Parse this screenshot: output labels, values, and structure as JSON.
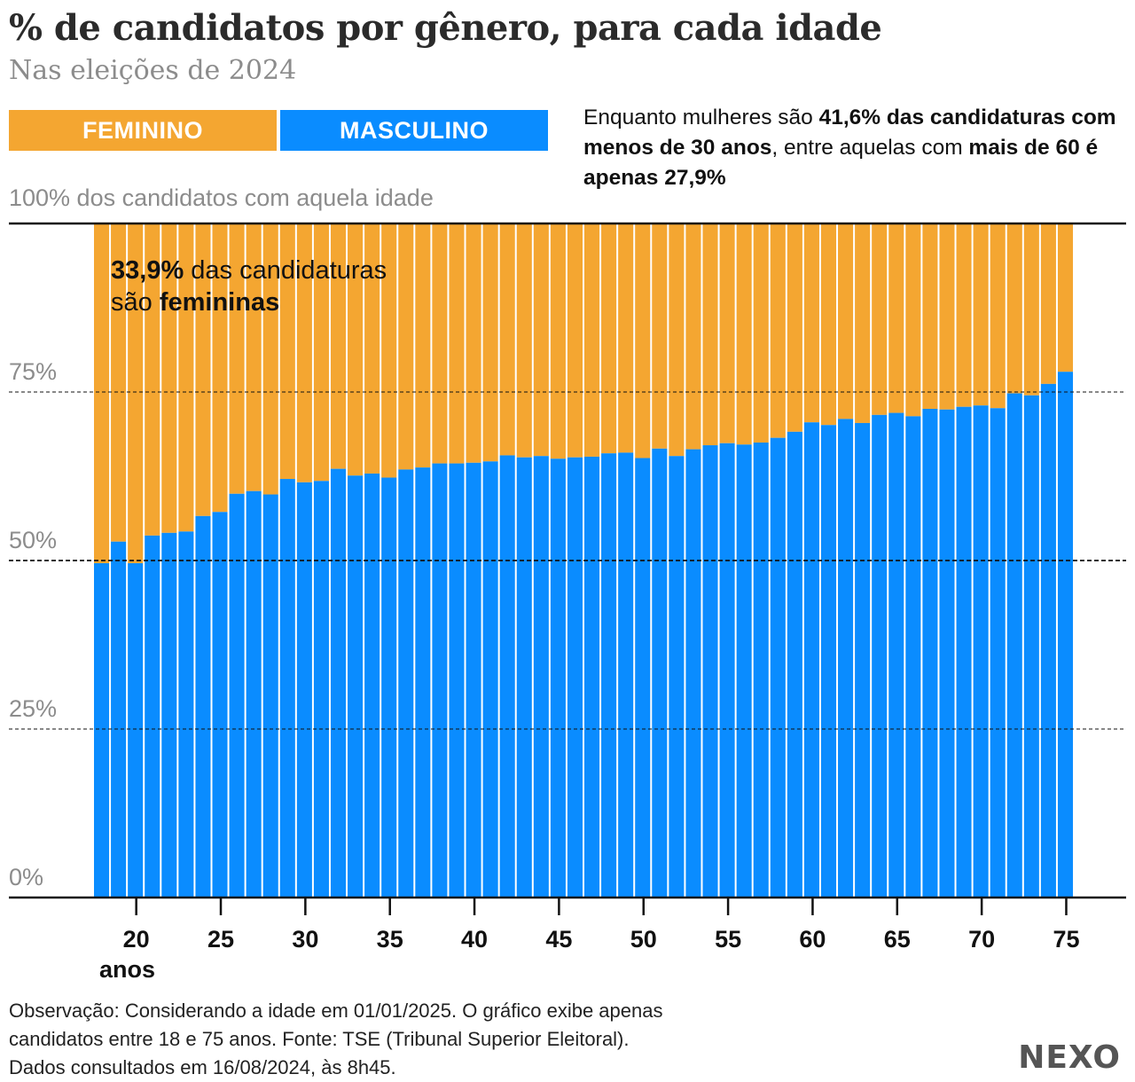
{
  "header": {
    "title": "% de candidatos por gênero, para cada idade",
    "subtitle": "Nas eleições de 2024"
  },
  "legend": {
    "feminino": "FEMININO",
    "masculino": "MASCULINO"
  },
  "annotation": {
    "t1": "Enquanto mulheres são ",
    "b1": "41,6% das candidaturas com menos de 30 anos",
    "t2": ", entre aquelas com ",
    "b2": "mais de 60 é apenas 27,9%"
  },
  "inner_note": {
    "b1": "33,9%",
    "t1": " das candidaturas",
    "t2": "são ",
    "b2": "femininas"
  },
  "footer": {
    "line1": "Observação: Considerando a idade em 01/01/2025. O gráfico exibe apenas",
    "line2": "candidatos entre 18 e 75 anos. Fonte: TSE (Tribunal Superior Eleitoral).",
    "line3": "Dados consultados em 16/08/2024, às 8h45."
  },
  "brand": "NEXO",
  "colors": {
    "feminino": "#f4a631",
    "masculino": "#0a8cff"
  },
  "chart_data": {
    "type": "bar",
    "stacked": true,
    "title": "% de candidatos por gênero, para cada idade",
    "ylabel": "100% dos candidatos com aquela idade",
    "ylim": [
      0,
      100
    ],
    "yticks": [
      0,
      25,
      50,
      75
    ],
    "ytick_labels": [
      "0%",
      "25%",
      "50%",
      "75%"
    ],
    "xticks": [
      20,
      25,
      30,
      35,
      40,
      45,
      50,
      55,
      60,
      65,
      70,
      75
    ],
    "xtick_labels": [
      "20",
      "25",
      "30",
      "35",
      "40",
      "45",
      "50",
      "55",
      "60",
      "65",
      "70",
      "75"
    ],
    "x_unit_label": "anos",
    "categories": [
      18,
      19,
      20,
      21,
      22,
      23,
      24,
      25,
      26,
      27,
      28,
      29,
      30,
      31,
      32,
      33,
      34,
      35,
      36,
      37,
      38,
      39,
      40,
      41,
      42,
      43,
      44,
      45,
      46,
      47,
      48,
      49,
      50,
      51,
      52,
      53,
      54,
      55,
      56,
      57,
      58,
      59,
      60,
      61,
      62,
      63,
      64,
      65,
      66,
      67,
      68,
      69,
      70,
      71,
      72,
      73,
      74,
      75
    ],
    "series": [
      {
        "name": "MASCULINO",
        "values": [
          49.6,
          52.8,
          49.6,
          53.7,
          54.1,
          54.3,
          56.6,
          57.2,
          59.9,
          60.3,
          59.8,
          62.1,
          61.6,
          61.8,
          63.6,
          62.6,
          62.9,
          62.3,
          63.5,
          63.8,
          64.4,
          64.4,
          64.5,
          64.7,
          65.6,
          65.3,
          65.5,
          65.1,
          65.3,
          65.4,
          65.9,
          66.0,
          65.2,
          66.6,
          65.5,
          66.5,
          67.1,
          67.4,
          67.2,
          67.5,
          68.2,
          69.1,
          70.5,
          70.1,
          71.0,
          70.4,
          71.6,
          71.9,
          71.4,
          72.5,
          72.4,
          72.8,
          73.0,
          72.6,
          74.8,
          74.5,
          76.2,
          78.0
        ]
      },
      {
        "name": "FEMININO",
        "values": [
          50.4,
          47.2,
          50.4,
          46.3,
          45.9,
          45.7,
          43.4,
          42.8,
          40.1,
          39.7,
          40.2,
          37.9,
          38.4,
          38.2,
          36.4,
          37.4,
          37.1,
          37.7,
          36.5,
          36.2,
          35.6,
          35.6,
          35.5,
          35.3,
          34.4,
          34.7,
          34.5,
          34.9,
          34.7,
          34.6,
          34.1,
          34.0,
          34.8,
          33.4,
          34.5,
          33.5,
          32.9,
          32.6,
          32.8,
          32.5,
          31.8,
          30.9,
          29.5,
          29.9,
          29.0,
          29.6,
          28.4,
          28.1,
          28.6,
          27.5,
          27.6,
          27.2,
          27.0,
          27.4,
          25.2,
          25.5,
          23.8,
          22.0
        ]
      }
    ]
  }
}
